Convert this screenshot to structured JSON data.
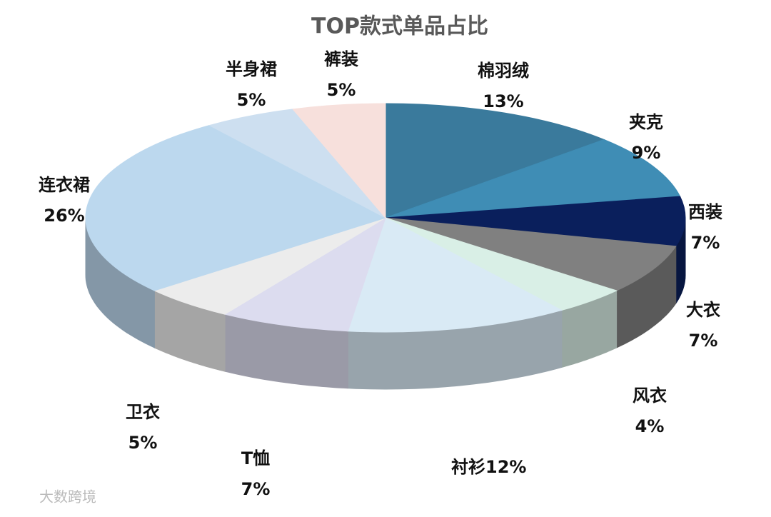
{
  "chart_data": {
    "type": "pie",
    "title": "TOP款式单品占比",
    "categories": [
      "棉羽绒",
      "夹克",
      "西装",
      "大衣",
      "风衣",
      "衬衫",
      "T恤",
      "卫衣",
      "连衣裙",
      "半身裙",
      "裤装"
    ],
    "values": [
      13,
      9,
      7,
      7,
      4,
      12,
      7,
      5,
      26,
      5,
      5
    ],
    "value_labels": [
      "13%",
      "9%",
      "7%",
      "7%",
      "4%",
      "12%",
      "7%",
      "5%",
      "26%",
      "5%",
      "5%"
    ],
    "colors": [
      "#3a7a9c",
      "#3f8db5",
      "#0a1f5c",
      "#808080",
      "#d9efe6",
      "#d9eaf5",
      "#dcdcef",
      "#ececec",
      "#bcd8ee",
      "#cddff0",
      "#f7e0dc"
    ]
  },
  "watermark": "大数跨境"
}
